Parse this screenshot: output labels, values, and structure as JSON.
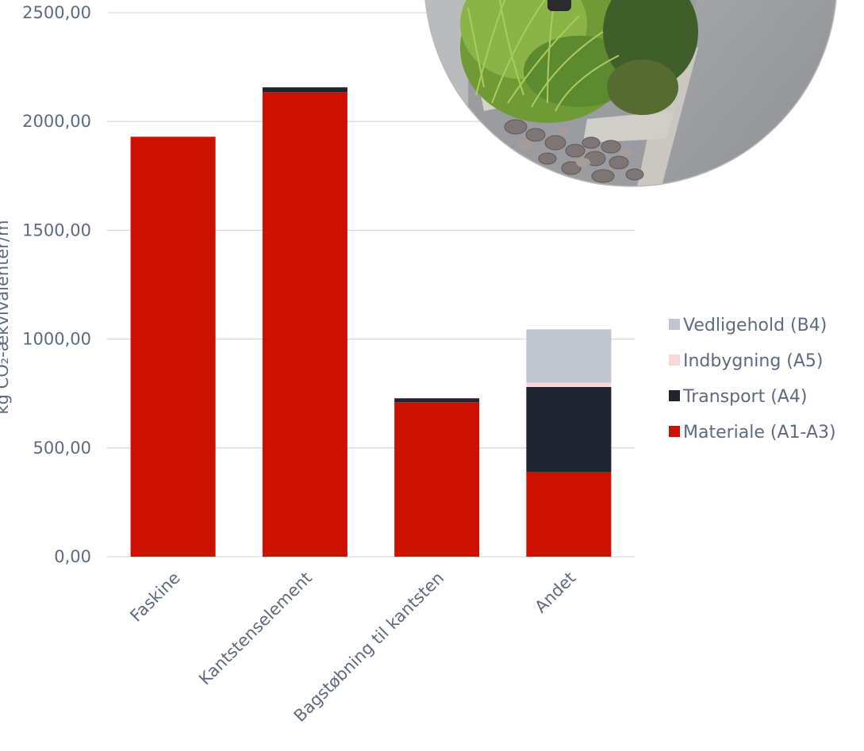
{
  "chart_data": {
    "type": "bar",
    "stacked": true,
    "categories": [
      "Faskine",
      "Kantstenselement",
      "Bagstøbning til kantsten",
      "Andet"
    ],
    "series": [
      {
        "name": "Materiale (A1-A3)",
        "color": "#cc1100",
        "values": [
          1930,
          2135,
          710,
          390
        ]
      },
      {
        "name": "Transport (A4)",
        "color": "#1f2530",
        "values": [
          0,
          22,
          18,
          390
        ]
      },
      {
        "name": "Indbygning (A5)",
        "color": "#fbd6d8",
        "values": [
          0,
          0,
          0,
          20
        ]
      },
      {
        "name": "Vedligehold (B4)",
        "color": "#c0c5d0",
        "values": [
          0,
          0,
          0,
          245
        ]
      }
    ],
    "yticks": [
      "0,00",
      "500,00",
      "1000,00",
      "1500,00",
      "2000,00",
      "2500,00"
    ],
    "ylim": [
      0,
      2500
    ],
    "ylabel": "kg CO₂-ækvivalenter/m",
    "grid": true,
    "legend_position": "right",
    "legend_order": [
      "Vedligehold (B4)",
      "Indbygning (A5)",
      "Transport (A4)",
      "Materiale (A1-A3)"
    ]
  },
  "photo": {
    "description_icon": "rain-garden-photo"
  }
}
